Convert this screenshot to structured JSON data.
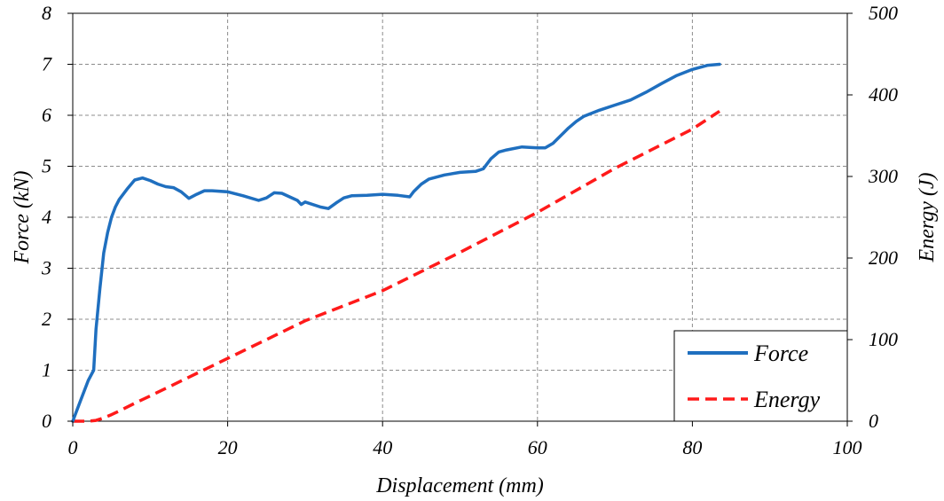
{
  "chart_data": {
    "type": "line",
    "xlabel": "Displacement (mm)",
    "ylabel": "Force (kN)",
    "y2label": "Energy (J)",
    "xlim": [
      0,
      100
    ],
    "ylim": [
      0,
      8
    ],
    "y2lim": [
      0,
      500
    ],
    "xticks": [
      0,
      20,
      40,
      60,
      80,
      100
    ],
    "yticks": [
      0,
      1,
      2,
      3,
      4,
      5,
      6,
      7,
      8
    ],
    "y2ticks": [
      0,
      100,
      200,
      300,
      400,
      500
    ],
    "grid": true,
    "legend_position": "bottom-right",
    "colors": {
      "force": "#1f6fbf",
      "energy": "#ff1a1a"
    },
    "series": [
      {
        "name": "Force",
        "axis": "left",
        "style": "solid",
        "x": [
          0,
          1,
          2,
          2.7,
          3,
          3.5,
          4,
          4.5,
          5,
          5.5,
          6,
          7,
          8,
          9,
          10,
          11,
          12,
          13,
          14,
          15,
          16,
          17,
          18,
          20,
          22,
          24,
          25,
          26,
          27,
          28,
          29,
          29.5,
          30,
          32,
          33,
          34,
          35,
          36,
          38,
          40,
          42,
          43.5,
          44,
          45,
          46,
          48,
          50,
          52,
          53,
          54,
          55,
          56,
          58,
          60,
          61,
          62,
          63,
          64,
          65,
          66,
          68,
          70,
          72,
          74,
          76,
          78,
          80,
          82,
          83.5
        ],
        "y": [
          0,
          0.4,
          0.8,
          1.0,
          1.8,
          2.6,
          3.3,
          3.7,
          4.0,
          4.2,
          4.35,
          4.55,
          4.73,
          4.77,
          4.72,
          4.65,
          4.6,
          4.58,
          4.5,
          4.37,
          4.45,
          4.52,
          4.52,
          4.5,
          4.42,
          4.33,
          4.38,
          4.48,
          4.47,
          4.4,
          4.33,
          4.25,
          4.3,
          4.2,
          4.17,
          4.28,
          4.38,
          4.42,
          4.43,
          4.45,
          4.43,
          4.4,
          4.5,
          4.65,
          4.75,
          4.83,
          4.88,
          4.9,
          4.95,
          5.15,
          5.28,
          5.32,
          5.38,
          5.36,
          5.36,
          5.45,
          5.6,
          5.75,
          5.88,
          5.98,
          6.1,
          6.2,
          6.3,
          6.45,
          6.62,
          6.78,
          6.9,
          6.98,
          7.0
        ]
      },
      {
        "name": "Energy",
        "axis": "right",
        "style": "dashed",
        "x": [
          0,
          2,
          3,
          4,
          5,
          6,
          8,
          10,
          20,
          30,
          40,
          50,
          60,
          70,
          80,
          83.5
        ],
        "y": [
          0,
          0,
          1,
          4,
          8,
          12.5,
          22,
          31,
          77,
          123,
          160,
          207,
          256,
          310,
          358,
          380
        ]
      }
    ]
  }
}
